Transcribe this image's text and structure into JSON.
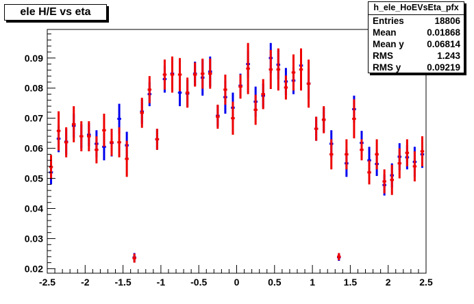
{
  "chart_data": {
    "type": "scatter",
    "title": "ele H/E vs eta",
    "xlabel": "",
    "ylabel": "",
    "xlim": [
      -2.5,
      2.5
    ],
    "ylim": [
      0.0185,
      0.0995
    ],
    "x_ticks": [
      -2.5,
      -2,
      -1.5,
      -1,
      -0.5,
      0,
      0.5,
      1,
      1.5,
      2,
      2.5
    ],
    "x_tick_labels": [
      "-2.5",
      "-2",
      "-1.5",
      "-1",
      "-0.5",
      "0",
      "0.5",
      "1",
      "1.5",
      "2",
      "2.5"
    ],
    "y_ticks": [
      0.02,
      0.03,
      0.04,
      0.05,
      0.06,
      0.07,
      0.08,
      0.09
    ],
    "y_tick_labels": [
      "0.02",
      "0.03",
      "0.04",
      "0.05",
      "0.06",
      "0.07",
      "0.08",
      "0.09"
    ],
    "bin_half_width": 0.025,
    "grid": false,
    "stats_box": {
      "name": "h_ele_HoEVsEta_pfx",
      "rows": [
        {
          "label": "Entries",
          "value": "18806"
        },
        {
          "label": "Mean",
          "value": "0.01868"
        },
        {
          "label": "Mean y",
          "value": "0.06814"
        },
        {
          "label": "RMS",
          "value": "1.243"
        },
        {
          "label": "RMS y",
          "value": "0.09219"
        }
      ]
    },
    "series": [
      {
        "color": "#0000ee",
        "points": [
          {
            "x": -2.45,
            "y": 0.052,
            "err": 0.004
          },
          {
            "x": -2.35,
            "y": 0.0632,
            "err": 0.0045
          },
          {
            "x": -2.25,
            "y": 0.0622,
            "err": 0.0043
          },
          {
            "x": -2.15,
            "y": 0.0675,
            "err": 0.004
          },
          {
            "x": -2.05,
            "y": 0.064,
            "err": 0.004
          },
          {
            "x": -1.95,
            "y": 0.0645,
            "err": 0.0038
          },
          {
            "x": -1.85,
            "y": 0.0615,
            "err": 0.0045
          },
          {
            "x": -1.75,
            "y": 0.0605,
            "err": 0.0045
          },
          {
            "x": -1.65,
            "y": 0.0618,
            "err": 0.0045
          },
          {
            "x": -1.55,
            "y": 0.0698,
            "err": 0.005
          },
          {
            "x": -1.45,
            "y": 0.061,
            "err": 0.0045
          },
          {
            "x": -1.35,
            "y": 0.0237,
            "err": 0.0015
          },
          {
            "x": -1.25,
            "y": 0.0722,
            "err": 0.004
          },
          {
            "x": -1.15,
            "y": 0.078,
            "err": 0.004
          },
          {
            "x": -1.05,
            "y": 0.063,
            "err": 0.0035
          },
          {
            "x": -0.95,
            "y": 0.083,
            "err": 0.0045
          },
          {
            "x": -0.85,
            "y": 0.0848,
            "err": 0.004
          },
          {
            "x": -0.75,
            "y": 0.0785,
            "err": 0.0045
          },
          {
            "x": -0.65,
            "y": 0.0782,
            "err": 0.0045
          },
          {
            "x": -0.55,
            "y": 0.0848,
            "err": 0.004
          },
          {
            "x": -0.45,
            "y": 0.0835,
            "err": 0.006
          },
          {
            "x": -0.35,
            "y": 0.0855,
            "err": 0.005
          },
          {
            "x": -0.25,
            "y": 0.0708,
            "err": 0.0035
          },
          {
            "x": -0.15,
            "y": 0.077,
            "err": 0.0055
          },
          {
            "x": -0.05,
            "y": 0.0735,
            "err": 0.005
          },
          {
            "x": 0.05,
            "y": 0.0808,
            "err": 0.004
          },
          {
            "x": 0.15,
            "y": 0.088,
            "err": 0.0045
          },
          {
            "x": 0.25,
            "y": 0.0755,
            "err": 0.005
          },
          {
            "x": 0.35,
            "y": 0.0775,
            "err": 0.004
          },
          {
            "x": 0.45,
            "y": 0.09,
            "err": 0.005
          },
          {
            "x": 0.55,
            "y": 0.0878,
            "err": 0.005
          },
          {
            "x": 0.65,
            "y": 0.0822,
            "err": 0.0045
          },
          {
            "x": 0.75,
            "y": 0.0825,
            "err": 0.0045
          },
          {
            "x": 0.85,
            "y": 0.0875,
            "err": 0.005
          },
          {
            "x": 0.95,
            "y": 0.0815,
            "err": 0.005
          },
          {
            "x": 1.05,
            "y": 0.0665,
            "err": 0.004
          },
          {
            "x": 1.15,
            "y": 0.0695,
            "err": 0.004
          },
          {
            "x": 1.25,
            "y": 0.0615,
            "err": 0.0045
          },
          {
            "x": 1.35,
            "y": 0.0238,
            "err": 0.0012
          },
          {
            "x": 1.45,
            "y": 0.055,
            "err": 0.0045
          },
          {
            "x": 1.55,
            "y": 0.073,
            "err": 0.0045
          },
          {
            "x": 1.65,
            "y": 0.0618,
            "err": 0.004
          },
          {
            "x": 1.75,
            "y": 0.056,
            "err": 0.0045
          },
          {
            "x": 1.85,
            "y": 0.0548,
            "err": 0.004
          },
          {
            "x": 1.95,
            "y": 0.0478,
            "err": 0.0035
          },
          {
            "x": 2.05,
            "y": 0.051,
            "err": 0.004
          },
          {
            "x": 2.15,
            "y": 0.0572,
            "err": 0.0045
          },
          {
            "x": 2.25,
            "y": 0.057,
            "err": 0.004
          },
          {
            "x": 2.35,
            "y": 0.0555,
            "err": 0.005
          },
          {
            "x": 2.45,
            "y": 0.058,
            "err": 0.0045
          }
        ]
      },
      {
        "color": "#ee0000",
        "points": [
          {
            "x": -2.45,
            "y": 0.0538,
            "err": 0.004
          },
          {
            "x": -2.35,
            "y": 0.0658,
            "err": 0.0065
          },
          {
            "x": -2.25,
            "y": 0.062,
            "err": 0.005
          },
          {
            "x": -2.15,
            "y": 0.068,
            "err": 0.006
          },
          {
            "x": -2.05,
            "y": 0.064,
            "err": 0.005
          },
          {
            "x": -1.95,
            "y": 0.064,
            "err": 0.005
          },
          {
            "x": -1.85,
            "y": 0.0595,
            "err": 0.0045
          },
          {
            "x": -1.75,
            "y": 0.066,
            "err": 0.0055
          },
          {
            "x": -1.65,
            "y": 0.062,
            "err": 0.0045
          },
          {
            "x": -1.55,
            "y": 0.062,
            "err": 0.005
          },
          {
            "x": -1.45,
            "y": 0.0565,
            "err": 0.006
          },
          {
            "x": -1.35,
            "y": 0.0235,
            "err": 0.0015
          },
          {
            "x": -1.25,
            "y": 0.0718,
            "err": 0.005
          },
          {
            "x": -1.15,
            "y": 0.0795,
            "err": 0.0045
          },
          {
            "x": -1.05,
            "y": 0.063,
            "err": 0.0035
          },
          {
            "x": -0.95,
            "y": 0.0845,
            "err": 0.005
          },
          {
            "x": -0.85,
            "y": 0.0845,
            "err": 0.006
          },
          {
            "x": -0.75,
            "y": 0.0845,
            "err": 0.0055
          },
          {
            "x": -0.65,
            "y": 0.0785,
            "err": 0.005
          },
          {
            "x": -0.55,
            "y": 0.0845,
            "err": 0.004
          },
          {
            "x": -0.45,
            "y": 0.0848,
            "err": 0.005
          },
          {
            "x": -0.35,
            "y": 0.0848,
            "err": 0.005
          },
          {
            "x": -0.25,
            "y": 0.0705,
            "err": 0.004
          },
          {
            "x": -0.15,
            "y": 0.0795,
            "err": 0.005
          },
          {
            "x": -0.05,
            "y": 0.07,
            "err": 0.0055
          },
          {
            "x": 0.05,
            "y": 0.0805,
            "err": 0.004
          },
          {
            "x": 0.15,
            "y": 0.0865,
            "err": 0.0085
          },
          {
            "x": 0.25,
            "y": 0.0728,
            "err": 0.005
          },
          {
            "x": 0.35,
            "y": 0.078,
            "err": 0.005
          },
          {
            "x": 0.45,
            "y": 0.0862,
            "err": 0.0065
          },
          {
            "x": 0.55,
            "y": 0.0862,
            "err": 0.007
          },
          {
            "x": 0.65,
            "y": 0.0802,
            "err": 0.004
          },
          {
            "x": 0.75,
            "y": 0.0852,
            "err": 0.006
          },
          {
            "x": 0.85,
            "y": 0.0862,
            "err": 0.007
          },
          {
            "x": 0.95,
            "y": 0.0815,
            "err": 0.008
          },
          {
            "x": 1.05,
            "y": 0.0665,
            "err": 0.004
          },
          {
            "x": 1.15,
            "y": 0.0695,
            "err": 0.0045
          },
          {
            "x": 1.25,
            "y": 0.058,
            "err": 0.005
          },
          {
            "x": 1.35,
            "y": 0.024,
            "err": 0.0012
          },
          {
            "x": 1.45,
            "y": 0.058,
            "err": 0.005
          },
          {
            "x": 1.55,
            "y": 0.0698,
            "err": 0.0065
          },
          {
            "x": 1.65,
            "y": 0.0595,
            "err": 0.0035
          },
          {
            "x": 1.75,
            "y": 0.052,
            "err": 0.004
          },
          {
            "x": 1.85,
            "y": 0.058,
            "err": 0.005
          },
          {
            "x": 1.95,
            "y": 0.049,
            "err": 0.004
          },
          {
            "x": 2.05,
            "y": 0.0495,
            "err": 0.005
          },
          {
            "x": 2.15,
            "y": 0.055,
            "err": 0.005
          },
          {
            "x": 2.25,
            "y": 0.0585,
            "err": 0.0045
          },
          {
            "x": 2.35,
            "y": 0.054,
            "err": 0.005
          },
          {
            "x": 2.45,
            "y": 0.059,
            "err": 0.005
          }
        ]
      }
    ]
  }
}
